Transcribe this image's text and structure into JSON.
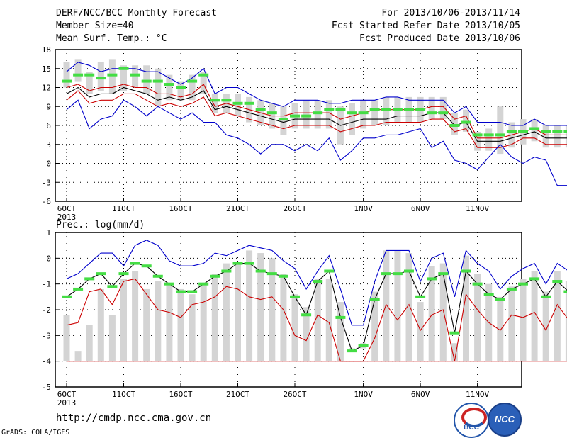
{
  "header": {
    "title": "DERF/NCC/BCC Monthly Forecast",
    "member_size": "Member Size=40",
    "variable": "Mean Surf. Temp.: °C",
    "period": "For 2013/10/06-2013/11/14",
    "start_date": "Fcst Started Refer Date 2013/10/05",
    "produced_date": "Fcst Produced Date 2013/10/06"
  },
  "footer": {
    "url": "http://cmdp.ncc.cma.gov.cn",
    "grads": "GrADS: COLA/IGES",
    "logo_bcc": "BCC",
    "logo_ncc": "NCC"
  },
  "colors": {
    "max": "#0000cc",
    "mean": "#000000",
    "min_line": "#cc0000",
    "box": "#d4d4d4",
    "median": "#44dd44"
  },
  "chart_data": [
    {
      "type": "line",
      "title": "Mean Surf. Temp.: °C",
      "x_tick_labels": [
        "6OCT",
        "11OCT",
        "16OCT",
        "21OCT",
        "26OCT",
        "1NOV",
        "6NOV",
        "11NOV"
      ],
      "x_year_label": "2013",
      "ylim": [
        -6,
        18
      ],
      "yticks": [
        -6,
        -3,
        0,
        3,
        6,
        9,
        12,
        15,
        18
      ],
      "grid": true,
      "series": [
        {
          "values": [
            14.5,
            16,
            15.5,
            14.5,
            15,
            15,
            15,
            14.5,
            14.5,
            13.5,
            12.5,
            13.5,
            15,
            11,
            12,
            12,
            11,
            10,
            9.5,
            9,
            10,
            10,
            10,
            9.5,
            9.5,
            10,
            10,
            10,
            10.5,
            10.5,
            10,
            10,
            10,
            10,
            8,
            9,
            6.5,
            6.5,
            6.5,
            6,
            6,
            7,
            6,
            6,
            6,
            6
          ]
        },
        {
          "values": [
            12,
            12.5,
            11.5,
            12,
            12,
            12.5,
            12,
            12,
            11,
            11,
            10.5,
            11,
            12.5,
            9,
            9.5,
            9,
            8.5,
            8,
            7.5,
            7.5,
            8,
            8,
            8,
            8,
            7,
            7.5,
            8,
            8.5,
            8.5,
            8.5,
            8.5,
            8.5,
            9,
            9,
            7,
            7.5,
            4,
            4,
            4,
            4.5,
            5,
            5.5,
            4.5,
            4.5,
            4.5,
            3
          ]
        },
        {
          "values": [
            11,
            12,
            10.5,
            11,
            11,
            12,
            11.5,
            11,
            10,
            10.5,
            10,
            10.5,
            11.5,
            8.5,
            9,
            8.5,
            8,
            7.5,
            7,
            6.5,
            7,
            7,
            7,
            7,
            6,
            6.5,
            7,
            7,
            7,
            7.5,
            7.5,
            7.5,
            8,
            8,
            6,
            6.5,
            3.5,
            3.5,
            3.5,
            4,
            4.5,
            5,
            4,
            4,
            4,
            2
          ]
        },
        {
          "values": [
            10,
            11.5,
            9.5,
            10,
            10,
            11,
            11,
            10,
            9,
            9.5,
            9,
            9.5,
            10.5,
            7.5,
            8,
            7.5,
            7,
            6.5,
            6,
            5.5,
            6,
            6,
            6,
            6,
            5,
            5.5,
            6,
            6,
            6.5,
            6.5,
            6.5,
            6.5,
            7,
            7,
            5,
            5.5,
            2.5,
            2.5,
            2.5,
            3,
            4,
            4,
            3,
            3,
            3,
            1
          ]
        },
        {
          "values": [
            8.5,
            10,
            5.5,
            7,
            7.5,
            10,
            9,
            7.5,
            9,
            8,
            7,
            8,
            6.5,
            6.5,
            4.5,
            4,
            3,
            1.5,
            3,
            3,
            2,
            3,
            2,
            4,
            0.5,
            2,
            4,
            4,
            4.5,
            4.5,
            5,
            5.5,
            2.5,
            3.5,
            0.5,
            0,
            -1,
            1,
            3,
            1,
            0,
            1,
            0.5,
            -3.5,
            -3.5,
            -3.5
          ]
        }
      ],
      "box_low": [
        12,
        13,
        11,
        11.5,
        11,
        11.5,
        12,
        11,
        9,
        10,
        10,
        10,
        11,
        8,
        8,
        7.5,
        6.5,
        6,
        5.5,
        4.5,
        5.5,
        5.5,
        5.5,
        5.5,
        3,
        4.5,
        5.5,
        6,
        6,
        6.5,
        6.5,
        6.5,
        7,
        7,
        4.5,
        5,
        2,
        2,
        1.5,
        2.5,
        3,
        3.5,
        2.5,
        2.5,
        2.5,
        -1.5
      ],
      "box_high": [
        16,
        16.5,
        14.5,
        16,
        16.5,
        15.5,
        15.5,
        15.5,
        15,
        14,
        13,
        14,
        14.5,
        11,
        11,
        11,
        10.5,
        10,
        9.5,
        9,
        9.5,
        10,
        10,
        10,
        9,
        9.5,
        10,
        10,
        10.5,
        10.5,
        10.5,
        10.5,
        10.5,
        10.5,
        8,
        8.5,
        5,
        5.5,
        9,
        6.5,
        7,
        7,
        6,
        6,
        6,
        7
      ],
      "median": [
        13,
        14,
        14,
        13.5,
        14,
        15,
        14,
        13,
        13,
        12.5,
        12,
        13,
        14,
        10,
        10,
        9.5,
        9.5,
        8.5,
        8,
        7,
        7.5,
        7.5,
        8,
        8.5,
        8.5,
        8,
        8,
        8.5,
        8.5,
        8.5,
        8.5,
        8.5,
        8,
        8,
        6,
        6.5,
        4.5,
        4.5,
        4.5,
        5,
        5,
        5.5,
        5,
        5,
        5,
        3.5
      ]
    },
    {
      "type": "line",
      "title": "Prec.: log(mm/d)",
      "x_tick_labels": [
        "6OCT",
        "11OCT",
        "16OCT",
        "21OCT",
        "26OCT",
        "1NOV",
        "6NOV",
        "11NOV"
      ],
      "x_year_label": "2013",
      "ylim": [
        -5,
        1
      ],
      "yticks": [
        -5,
        -4,
        -3,
        -2,
        -1,
        0,
        1
      ],
      "grid": true,
      "series": [
        {
          "values": [
            -0.8,
            -0.6,
            -0.2,
            0.2,
            0.2,
            -0.3,
            0.5,
            0.7,
            0.5,
            -0.1,
            -0.3,
            -0.3,
            -0.2,
            0.2,
            0.1,
            0.3,
            0.5,
            0.4,
            0.3,
            -0.1,
            -0.4,
            -1.2,
            -0.5,
            0.1,
            -1.2,
            -2.6,
            -2.6,
            -0.9,
            0.3,
            0.3,
            0.3,
            -0.9,
            0,
            0.2,
            -1.5,
            0.3,
            -0.2,
            -0.5,
            -1.2,
            -0.7,
            -0.4,
            -0.2,
            -1,
            -0.2,
            -0.5,
            -0.5
          ]
        },
        {
          "values": [
            -1.5,
            -1.2,
            -0.8,
            -0.6,
            -1.1,
            -0.6,
            -0.2,
            -0.3,
            -0.7,
            -1,
            -1.3,
            -1.3,
            -1,
            -0.7,
            -0.5,
            -0.2,
            -0.2,
            -0.5,
            -0.6,
            -0.7,
            -1.5,
            -2.2,
            -0.9,
            -0.5,
            -2.3,
            -3.6,
            -3.4,
            -1.6,
            -0.6,
            -0.6,
            -0.5,
            -1.5,
            -0.8,
            -0.6,
            -2.9,
            -0.5,
            -1,
            -1.4,
            -1.6,
            -1.2,
            -1,
            -0.8,
            -1.5,
            -0.9,
            -1.3,
            -1.3
          ]
        },
        {
          "values": [
            -2.6,
            -2.5,
            -1.3,
            -1.2,
            -1.8,
            -0.9,
            -0.8,
            -1.4,
            -2,
            -2.1,
            -2.3,
            -1.8,
            -1.7,
            -1.5,
            -1.1,
            -1.2,
            -1.5,
            -1.6,
            -1.5,
            -2,
            -3,
            -3.2,
            -2.2,
            -2.5,
            -4,
            -4,
            -4,
            -3.1,
            -1.8,
            -2.4,
            -1.8,
            -2.8,
            -2.2,
            -2,
            -4,
            -1.4,
            -2,
            -2.5,
            -2.8,
            -2.2,
            -2.3,
            -2.1,
            -2.8,
            -1.8,
            -2.4,
            -2.3
          ]
        },
        {
          "values": [
            -4,
            -4,
            -4,
            -4,
            -4,
            -4,
            -4,
            -4,
            -4,
            -4,
            -4,
            -4,
            -4,
            -4,
            -4,
            -4,
            -4,
            -4,
            -4,
            -4,
            -4,
            -4,
            -4,
            -4,
            -4,
            -4,
            -4,
            -4,
            -4,
            -4,
            -4,
            -4,
            -4,
            -4,
            -4,
            -4,
            -4,
            -4,
            -4,
            -4,
            -4,
            -4,
            -4,
            -4,
            -4,
            -4
          ]
        }
      ],
      "box_low": [
        -4,
        -4,
        -4,
        -4,
        -4,
        -4,
        -4,
        -4,
        -4,
        -4,
        -4,
        -4,
        -4,
        -4,
        -4,
        -4,
        -4,
        -4,
        -4,
        -4,
        -4,
        -4,
        -4,
        -4,
        -4,
        -3.5,
        -3.5,
        -4,
        -4,
        -4,
        -4,
        -4,
        -4,
        -4,
        -4,
        -4,
        -4,
        -4,
        -4,
        -4,
        -4,
        -4,
        -4,
        -4,
        -4,
        -4
      ],
      "box_high": [
        -2.2,
        -3.6,
        -2.6,
        -1.2,
        -2.2,
        -0.8,
        -0.5,
        -1.2,
        -0.9,
        -1,
        -1.2,
        -1.4,
        -1,
        -0.6,
        -0.2,
        -0.2,
        0.3,
        0.2,
        0,
        -0.6,
        -1.4,
        -1.9,
        -0.8,
        -0.8,
        -1.7,
        -3.5,
        -3.3,
        -1.3,
        0.3,
        0.3,
        0.2,
        -1.7,
        -0.3,
        -0.2,
        -3.3,
        0.1,
        -0.6,
        -1,
        -1.5,
        -1.1,
        -0.8,
        -0.5,
        -1.3,
        -0.5,
        -0.9,
        -1
      ]
    }
  ]
}
